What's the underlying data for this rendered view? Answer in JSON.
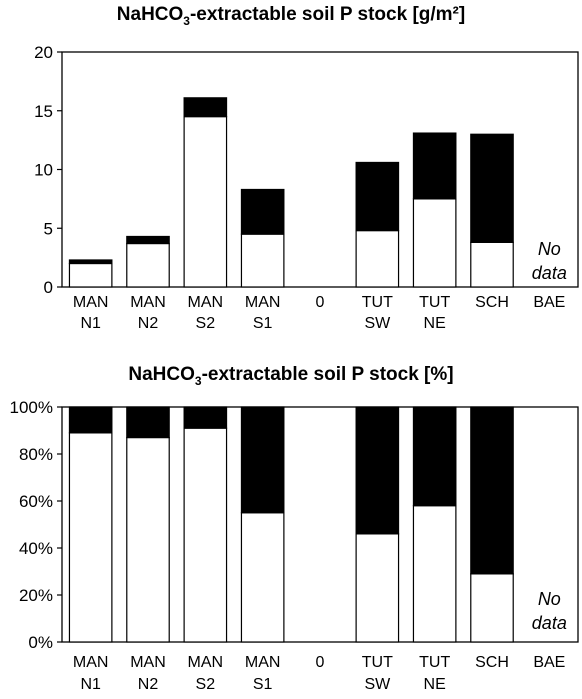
{
  "chart_data": [
    {
      "type": "bar",
      "stacked": true,
      "title_main": "NaHCO",
      "title_sub": "3",
      "title_rest": "-extractable soil P stock [g/m²]",
      "categories": [
        [
          "MAN",
          "N1"
        ],
        [
          "MAN",
          "N2"
        ],
        [
          "MAN",
          "S2"
        ],
        [
          "MAN",
          "S1"
        ],
        [
          "0",
          ""
        ],
        [
          "TUT",
          "SW"
        ],
        [
          "TUT",
          "NE"
        ],
        [
          "SCH",
          ""
        ],
        [
          "BAE",
          ""
        ]
      ],
      "series": [
        {
          "color": "#ffffff",
          "values": [
            2.0,
            3.7,
            14.5,
            4.5,
            0,
            4.8,
            7.5,
            3.8,
            null
          ]
        },
        {
          "color": "#000000",
          "values": [
            0.3,
            0.6,
            1.6,
            3.8,
            0,
            5.8,
            5.6,
            9.2,
            null
          ]
        }
      ],
      "ylim": [
        0,
        20
      ],
      "yticks": [
        "0",
        "5",
        "10",
        "15",
        "20"
      ],
      "annotation": [
        "No",
        "data"
      ],
      "grid": false
    },
    {
      "type": "bar",
      "stacked": true,
      "title_main": "NaHCO",
      "title_sub": "3",
      "title_rest": "-extractable soil P stock [%]",
      "categories": [
        [
          "MAN",
          "N1"
        ],
        [
          "MAN",
          "N2"
        ],
        [
          "MAN",
          "S2"
        ],
        [
          "MAN",
          "S1"
        ],
        [
          "0",
          ""
        ],
        [
          "TUT",
          "SW"
        ],
        [
          "TUT",
          "NE"
        ],
        [
          "SCH",
          ""
        ],
        [
          "BAE",
          ""
        ]
      ],
      "series": [
        {
          "color": "#ffffff",
          "values": [
            89,
            87,
            91,
            55,
            0,
            46,
            58,
            29,
            null
          ]
        },
        {
          "color": "#000000",
          "values": [
            11,
            13,
            9,
            45,
            0,
            54,
            42,
            71,
            null
          ]
        }
      ],
      "ylim": [
        0,
        100
      ],
      "yticks": [
        "0%",
        "20%",
        "40%",
        "60%",
        "80%",
        "100%"
      ],
      "annotation": [
        "No",
        "data"
      ],
      "grid": false
    }
  ]
}
